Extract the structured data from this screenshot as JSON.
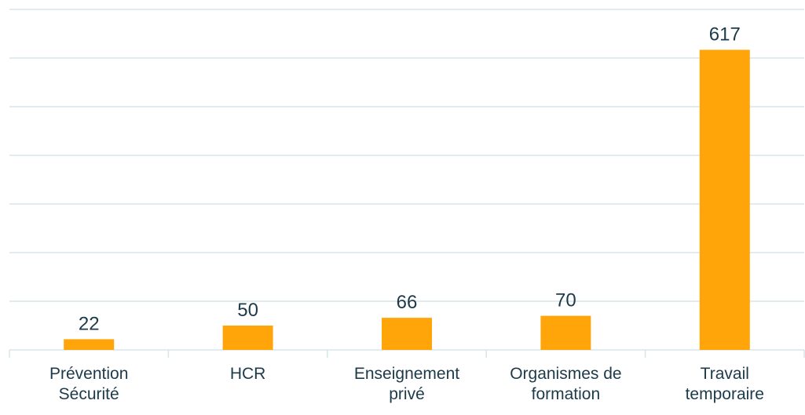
{
  "chart_data": {
    "type": "bar",
    "categories": [
      "Prévention Sécurité",
      "HCR",
      "Enseignement privé",
      "Organismes de formation",
      "Travail temporaire"
    ],
    "values": [
      22,
      50,
      66,
      70,
      617
    ],
    "color": "#ffa50a",
    "ylim": [
      0,
      700
    ],
    "yticks": [
      0,
      100,
      200,
      300,
      400,
      500,
      600,
      700
    ],
    "grid": true
  }
}
